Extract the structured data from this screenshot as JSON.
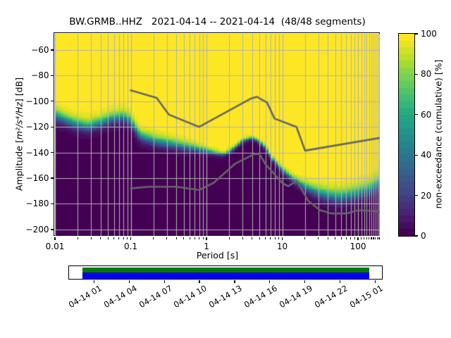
{
  "title": "BW.GRMB..HHZ   2021-04-14 -- 2021-04-14  (48/48 segments)",
  "chart_data": {
    "type": "heatmap",
    "subtype": "ppsd-cumulative-spectrogram",
    "title": "BW.GRMB..HHZ   2021-04-14 -- 2021-04-14  (48/48 segments)",
    "xlabel": "Period [s]",
    "ylabel_pre": "Amplitude [",
    "ylabel_math": "m²/s⁴/Hz",
    "ylabel_post": "] [dB]",
    "colorbar_label": "non-exceedance (cumulative) [%]",
    "xscale": "log",
    "xlim": [
      0.01,
      194
    ],
    "ylim": [
      -205,
      -47.4
    ],
    "grid": true,
    "xticks": {
      "major": [
        0.01,
        0.1,
        1,
        10,
        100
      ],
      "major_labels": [
        "0.01",
        "0.1",
        "1",
        "10",
        "100"
      ],
      "minor": [
        0.02,
        0.03,
        0.04,
        0.05,
        0.06,
        0.07,
        0.08,
        0.09,
        0.2,
        0.3,
        0.4,
        0.5,
        0.6,
        0.7,
        0.8,
        0.9,
        2,
        3,
        4,
        5,
        6,
        7,
        8,
        9,
        20,
        30,
        40,
        50,
        60,
        70,
        80,
        90,
        110,
        120,
        130,
        140,
        150,
        160,
        170,
        180,
        190
      ]
    },
    "yticks": {
      "values": [
        -60,
        -80,
        -100,
        -120,
        -140,
        -160,
        -180,
        -200
      ],
      "labels": [
        "−60",
        "−80",
        "−100",
        "−120",
        "−140",
        "−160",
        "−180",
        "−200"
      ]
    },
    "colorbar_ticks": {
      "values": [
        0,
        20,
        40,
        60,
        80,
        100
      ],
      "labels": [
        "0",
        "20",
        "40",
        "60",
        "80",
        "100"
      ]
    },
    "colorbar_levels": 30,
    "cumulative_distribution": {
      "comment": "non-exceedance fraction v(T,dB) = logistic CDF centered at center_db with width sigma_db; interpolated linearly in log10(period)",
      "period_s": [
        0.01,
        0.0135,
        0.018,
        0.027,
        0.04,
        0.055,
        0.08,
        0.1,
        0.115,
        0.135,
        0.2,
        0.3,
        0.5,
        0.7,
        1.0,
        1.35,
        1.7,
        2.2,
        3.0,
        4.0,
        5.0,
        6.0,
        7.8,
        10.0,
        14.0,
        20.0,
        30.0,
        40.0,
        55.0,
        80.0,
        100.0,
        130.0,
        160.0,
        194.0
      ],
      "center_db": [
        -110.5,
        -114.0,
        -117.0,
        -119.5,
        -116.5,
        -113.5,
        -112.0,
        -115.0,
        -121.0,
        -127.0,
        -130.5,
        -132.5,
        -135.0,
        -136.5,
        -138.5,
        -140.5,
        -141.3,
        -137.5,
        -131.0,
        -128.5,
        -131.5,
        -136.0,
        -147.0,
        -153.6,
        -161.0,
        -166.5,
        -171.0,
        -173.0,
        -174.5,
        -173.0,
        -171.5,
        -169.5,
        -166.5,
        -163.5
      ],
      "sigma_db": [
        5.0,
        4.5,
        4.5,
        4.5,
        4.5,
        4.5,
        4.5,
        4.5,
        4.2,
        4.2,
        4.0,
        4.0,
        3.5,
        3.0,
        2.2,
        1.8,
        1.4,
        1.6,
        1.5,
        1.4,
        1.5,
        1.8,
        1.8,
        2.2,
        2.7,
        3.5,
        4.5,
        5.0,
        5.5,
        5.5,
        5.5,
        5.5,
        5.5,
        5.5
      ],
      "period_bin_octaves": 0.125,
      "db_bin": 1
    },
    "noise_models": {
      "nhnm": [
        [
          0.1,
          -91.5
        ],
        [
          0.22,
          -97.4
        ],
        [
          0.32,
          -110.5
        ],
        [
          0.8,
          -120.0
        ],
        [
          3.8,
          -98.1
        ],
        [
          4.6,
          -96.5
        ],
        [
          6.3,
          -101.0
        ],
        [
          7.9,
          -113.5
        ],
        [
          15.4,
          -120.0
        ],
        [
          20.0,
          -138.5
        ],
        [
          354.8,
          -126.0
        ]
      ],
      "nlnm": [
        [
          0.1,
          -168.0
        ],
        [
          0.17,
          -166.7
        ],
        [
          0.4,
          -166.7
        ],
        [
          0.8,
          -169.2
        ],
        [
          1.24,
          -163.7
        ],
        [
          2.4,
          -148.6
        ],
        [
          4.3,
          -141.1
        ],
        [
          5.0,
          -141.1
        ],
        [
          6.0,
          -149.0
        ],
        [
          10.0,
          -163.8
        ],
        [
          12.0,
          -166.2
        ],
        [
          15.6,
          -162.1
        ],
        [
          21.9,
          -177.5
        ],
        [
          31.6,
          -185.0
        ],
        [
          45.0,
          -187.5
        ],
        [
          70.0,
          -187.5
        ],
        [
          101.0,
          -185.0
        ],
        [
          154.0,
          -185.5
        ],
        [
          328.0,
          -187.5
        ]
      ]
    },
    "viridis_stops": [
      [
        0.0,
        "#440154"
      ],
      [
        0.1,
        "#482475"
      ],
      [
        0.2,
        "#414487"
      ],
      [
        0.3,
        "#355f8d"
      ],
      [
        0.4,
        "#2a788e"
      ],
      [
        0.5,
        "#21918c"
      ],
      [
        0.6,
        "#22a884"
      ],
      [
        0.7,
        "#44bf70"
      ],
      [
        0.8,
        "#7ad151"
      ],
      [
        0.9,
        "#bddf26"
      ],
      [
        1.0,
        "#fde725"
      ]
    ],
    "grid_color": "#b2b2b2",
    "noise_model_color": "#666666",
    "legend": "none"
  },
  "timeline": {
    "tick_hours": [
      1,
      4,
      7,
      10,
      13,
      16,
      19,
      22,
      25
    ],
    "tick_labels": [
      "04-14 01",
      "04-14 04",
      "04-14 07",
      "04-14 10",
      "04-14 13",
      "04-14 16",
      "04-14 19",
      "04-14 22",
      "04-15 01"
    ],
    "coverage_start_h": 0,
    "coverage_end_h": 24.5,
    "data_color": "#0000ee",
    "times_color": "#007a00",
    "box_color": "#ffffff"
  }
}
